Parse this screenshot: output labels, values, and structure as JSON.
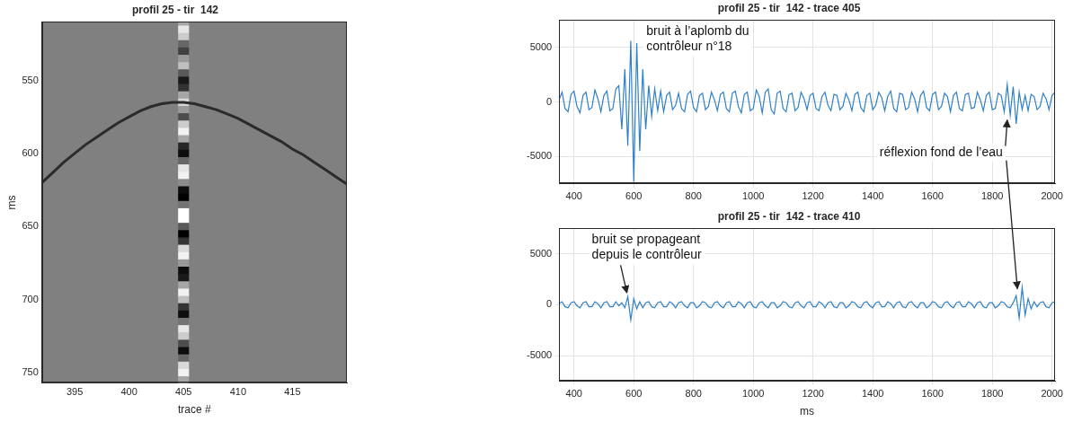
{
  "chart_data": [
    {
      "type": "heatmap",
      "title": "profil 25 - tir  142",
      "x_label": "trace #",
      "y_label": "ms",
      "xlim": [
        392,
        420
      ],
      "xticks": [
        395,
        400,
        405,
        410,
        415
      ],
      "ylim": [
        757,
        510
      ],
      "yticks": [
        550,
        600,
        650,
        700,
        750
      ],
      "grid": false,
      "clim": [
        -1,
        1
      ],
      "cells": {
        "x": 405,
        "y": [
          510,
          515,
          520,
          525,
          530,
          535,
          540,
          545,
          550,
          555,
          560,
          565,
          570,
          575,
          580,
          585,
          590,
          595,
          600,
          605,
          610,
          615,
          620,
          625,
          630,
          635,
          640,
          645,
          650,
          655,
          660,
          665,
          670,
          675,
          680,
          685,
          690,
          695,
          700,
          705,
          710,
          715,
          720,
          725,
          730,
          735,
          740,
          745,
          750,
          755
        ],
        "values": [
          0.3,
          0.8,
          0.6,
          -0.2,
          -0.5,
          0.2,
          0.5,
          -0.3,
          -0.8,
          -0.6,
          0.3,
          0.7,
          0.2,
          -0.4,
          0.6,
          0.9,
          0.3,
          -0.7,
          -0.9,
          -0.2,
          0.8,
          0.9,
          0.1,
          -0.9,
          -1.0,
          -0.1,
          1.0,
          1.0,
          -0.3,
          -1.0,
          -0.6,
          0.7,
          0.9,
          0.2,
          -0.9,
          -0.8,
          0.3,
          0.9,
          0.5,
          -0.6,
          -0.9,
          -0.1,
          0.8,
          0.6,
          -0.4,
          -0.9,
          -0.2,
          0.7,
          0.9,
          0.3
        ]
      },
      "series": [
        {
          "color": "#2b2b2b",
          "x": [
            392,
            393,
            394,
            395,
            396,
            397,
            398,
            399,
            400,
            401,
            402,
            403,
            404,
            405,
            406,
            407,
            408,
            409,
            410,
            411,
            412,
            413,
            414,
            415,
            416,
            417,
            418,
            419,
            420
          ],
          "values": [
            620,
            613,
            606,
            600,
            594,
            589,
            584,
            579,
            575,
            571,
            568,
            566,
            565,
            565,
            566,
            568,
            570,
            573,
            576,
            580,
            584,
            588,
            592,
            597,
            601,
            606,
            611,
            616,
            621
          ]
        }
      ]
    },
    {
      "type": "line",
      "title": "profil 25 - tir  142 - trace 405",
      "xlim": [
        350,
        2010
      ],
      "xticks": [
        400,
        600,
        800,
        1000,
        1200,
        1400,
        1600,
        1800,
        2000
      ],
      "ylim": [
        -7500,
        7500
      ],
      "yticks": [
        -5000,
        0,
        5000
      ],
      "grid": true,
      "series": [
        {
          "color": "#3080c8",
          "x": [
            350,
            360,
            370,
            380,
            390,
            400,
            410,
            420,
            430,
            440,
            450,
            460,
            470,
            480,
            490,
            500,
            510,
            520,
            530,
            540,
            550,
            560,
            570,
            580,
            590,
            600,
            610,
            620,
            630,
            640,
            650,
            660,
            670,
            680,
            690,
            700,
            710,
            720,
            730,
            740,
            750,
            760,
            770,
            780,
            790,
            800,
            810,
            820,
            830,
            840,
            850,
            860,
            870,
            880,
            890,
            900,
            910,
            920,
            930,
            940,
            950,
            960,
            970,
            980,
            990,
            1000,
            1010,
            1020,
            1030,
            1040,
            1050,
            1060,
            1070,
            1080,
            1090,
            1100,
            1110,
            1120,
            1130,
            1140,
            1150,
            1160,
            1170,
            1180,
            1190,
            1200,
            1210,
            1220,
            1230,
            1240,
            1250,
            1260,
            1270,
            1280,
            1290,
            1300,
            1310,
            1320,
            1330,
            1340,
            1350,
            1360,
            1370,
            1380,
            1390,
            1400,
            1410,
            1420,
            1430,
            1440,
            1450,
            1460,
            1470,
            1480,
            1490,
            1500,
            1510,
            1520,
            1530,
            1540,
            1550,
            1560,
            1570,
            1580,
            1590,
            1600,
            1610,
            1620,
            1630,
            1640,
            1650,
            1660,
            1670,
            1680,
            1690,
            1700,
            1710,
            1720,
            1730,
            1740,
            1750,
            1760,
            1770,
            1780,
            1790,
            1800,
            1810,
            1820,
            1830,
            1840,
            1850,
            1860,
            1870,
            1880,
            1890,
            1900,
            1910,
            1920,
            1930,
            1940,
            1950,
            1960,
            1970,
            1980,
            1990,
            2000,
            2010
          ],
          "values": [
            200,
            900,
            -600,
            -900,
            700,
            1000,
            -400,
            -1000,
            600,
            900,
            -700,
            -500,
            1100,
            300,
            -900,
            600,
            1000,
            -800,
            -600,
            1200,
            1500,
            -2500,
            3000,
            -4000,
            5600,
            -7300,
            5400,
            -4500,
            3000,
            -2500,
            1500,
            -1300,
            1200,
            -800,
            1000,
            -900,
            600,
            900,
            -700,
            -300,
            800,
            -600,
            -900,
            700,
            1000,
            -500,
            -900,
            600,
            800,
            -700,
            -400,
            900,
            200,
            -800,
            700,
            900,
            -600,
            -900,
            800,
            1000,
            -400,
            -1000,
            700,
            900,
            -800,
            -600,
            1100,
            500,
            -1000,
            900,
            1200,
            -700,
            -1100,
            800,
            1000,
            -600,
            -900,
            700,
            800,
            -800,
            -500,
            900,
            300,
            -700,
            600,
            800,
            -600,
            -800,
            500,
            900,
            -300,
            -800,
            700,
            600,
            -700,
            -400,
            800,
            200,
            -800,
            700,
            900,
            -500,
            -900,
            600,
            800,
            -700,
            -300,
            900,
            400,
            -800,
            500,
            1000,
            -600,
            -900,
            800,
            700,
            -700,
            -500,
            900,
            300,
            -900,
            600,
            1000,
            -500,
            -800,
            700,
            900,
            -700,
            -400,
            800,
            500,
            -900,
            600,
            900,
            -600,
            -800,
            700,
            800,
            -600,
            -500,
            900,
            200,
            -800,
            600,
            900,
            -700,
            -600,
            800,
            600,
            -900,
            1600,
            -1200,
            1400,
            -2000,
            900,
            -700,
            600,
            -800,
            700,
            500,
            -700,
            -400,
            800,
            300,
            -700,
            600,
            900
          ]
        }
      ],
      "annotations": [
        {
          "text": "bruit à l’aplomb du contrôleur n°18",
          "x": 600,
          "y": 5600
        },
        {
          "text": "réflexion fond de l’eau",
          "x": 1850,
          "y": -1400
        }
      ]
    },
    {
      "type": "line",
      "title": "profil 25 - tir  142 - trace 410",
      "x_label": "ms",
      "xlim": [
        350,
        2010
      ],
      "xticks": [
        400,
        600,
        800,
        1000,
        1200,
        1400,
        1600,
        1800,
        2000
      ],
      "ylim": [
        -7500,
        7500
      ],
      "yticks": [
        -5000,
        0,
        5000
      ],
      "grid": true,
      "series": [
        {
          "color": "#3080c8",
          "x": [
            350,
            360,
            370,
            380,
            390,
            400,
            410,
            420,
            430,
            440,
            450,
            460,
            470,
            480,
            490,
            500,
            510,
            520,
            530,
            540,
            550,
            560,
            570,
            580,
            590,
            600,
            610,
            620,
            630,
            640,
            650,
            660,
            670,
            680,
            690,
            700,
            710,
            720,
            730,
            740,
            750,
            760,
            770,
            780,
            790,
            800,
            810,
            820,
            830,
            840,
            850,
            860,
            870,
            880,
            890,
            900,
            910,
            920,
            930,
            940,
            950,
            960,
            970,
            980,
            990,
            1000,
            1010,
            1020,
            1030,
            1040,
            1050,
            1060,
            1070,
            1080,
            1090,
            1100,
            1110,
            1120,
            1130,
            1140,
            1150,
            1160,
            1170,
            1180,
            1190,
            1200,
            1210,
            1220,
            1230,
            1240,
            1250,
            1260,
            1270,
            1280,
            1290,
            1300,
            1310,
            1320,
            1330,
            1340,
            1350,
            1360,
            1370,
            1380,
            1390,
            1400,
            1410,
            1420,
            1430,
            1440,
            1450,
            1460,
            1470,
            1480,
            1490,
            1500,
            1510,
            1520,
            1530,
            1540,
            1550,
            1560,
            1570,
            1580,
            1590,
            1600,
            1610,
            1620,
            1630,
            1640,
            1650,
            1660,
            1670,
            1680,
            1690,
            1700,
            1710,
            1720,
            1730,
            1740,
            1750,
            1760,
            1770,
            1780,
            1790,
            1800,
            1810,
            1820,
            1830,
            1840,
            1850,
            1860,
            1870,
            1880,
            1890,
            1900,
            1910,
            1920,
            1930,
            1940,
            1950,
            1960,
            1970,
            1980,
            1990,
            2000,
            2010
          ],
          "values": [
            100,
            300,
            -200,
            -300,
            200,
            300,
            -100,
            -300,
            200,
            300,
            -200,
            -200,
            300,
            100,
            -300,
            200,
            300,
            -200,
            -200,
            300,
            -100,
            200,
            -300,
            800,
            -1500,
            600,
            -400,
            300,
            -300,
            200,
            300,
            -200,
            -300,
            200,
            300,
            -200,
            -200,
            300,
            100,
            -300,
            200,
            300,
            -100,
            -300,
            200,
            200,
            -300,
            -100,
            300,
            200,
            -200,
            -300,
            200,
            300,
            -100,
            -300,
            200,
            300,
            -200,
            -200,
            300,
            100,
            -300,
            200,
            300,
            -200,
            -300,
            200,
            300,
            -100,
            -300,
            200,
            200,
            -300,
            -100,
            300,
            200,
            -200,
            -300,
            200,
            300,
            -100,
            -300,
            200,
            300,
            -200,
            -200,
            300,
            100,
            -300,
            200,
            300,
            -200,
            -300,
            200,
            200,
            -300,
            -100,
            300,
            200,
            -200,
            -300,
            200,
            300,
            -100,
            -300,
            200,
            300,
            -200,
            -200,
            300,
            100,
            -300,
            200,
            300,
            -200,
            -300,
            200,
            300,
            -100,
            -300,
            200,
            200,
            -300,
            -100,
            300,
            200,
            -200,
            -300,
            200,
            300,
            -100,
            -300,
            200,
            300,
            -200,
            -200,
            300,
            100,
            -300,
            200,
            300,
            -200,
            -300,
            200,
            200,
            -300,
            -100,
            300,
            200,
            -200,
            -300,
            200,
            900,
            -1300,
            1700,
            -1000,
            600,
            -400,
            300,
            -200,
            200,
            300,
            -200,
            -300,
            200,
            300
          ]
        }
      ],
      "annotations": [
        {
          "text": "bruit se propageant depuis le contrôleur",
          "x": 580,
          "y": 900
        },
        {
          "text": "réflexion fond de l’eau",
          "x": 1890,
          "y": 1300
        }
      ]
    }
  ]
}
